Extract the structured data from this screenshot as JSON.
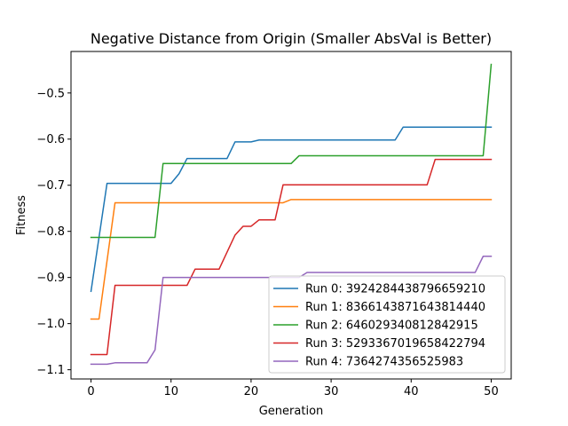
{
  "chart_data": {
    "type": "line",
    "title": "Negative Distance from Origin (Smaller AbsVal is Better)",
    "xlabel": "Generation",
    "ylabel": "Fitness",
    "xlim": [
      -2.5,
      52.5
    ],
    "ylim": [
      -1.12,
      -0.41
    ],
    "xticks": [
      0,
      10,
      20,
      30,
      40,
      50
    ],
    "yticks": [
      -1.1,
      -1.0,
      -0.9,
      -0.8,
      -0.7,
      -0.6,
      -0.5
    ],
    "ytick_labels": [
      "−1.1",
      "−1.0",
      "−0.9",
      "−0.8",
      "−0.7",
      "−0.6",
      "−0.5"
    ],
    "grid": false,
    "legend_position": "lower right",
    "series": [
      {
        "name": "Run 0: 3924284438796659210",
        "color": "#1f77b4",
        "points": [
          [
            0,
            -0.93
          ],
          [
            2,
            -0.696
          ],
          [
            10,
            -0.696
          ],
          [
            11,
            -0.675
          ],
          [
            12,
            -0.642
          ],
          [
            17,
            -0.642
          ],
          [
            18,
            -0.606
          ],
          [
            20,
            -0.606
          ],
          [
            21,
            -0.602
          ],
          [
            38,
            -0.602
          ],
          [
            39,
            -0.574
          ],
          [
            50,
            -0.574
          ]
        ]
      },
      {
        "name": "Run 1: 8366143871643814440",
        "color": "#ff7f0e",
        "points": [
          [
            0,
            -0.99
          ],
          [
            1,
            -0.99
          ],
          [
            3,
            -0.738
          ],
          [
            24,
            -0.738
          ],
          [
            25,
            -0.731
          ],
          [
            50,
            -0.731
          ]
        ]
      },
      {
        "name": "Run 2: 646029340812842915",
        "color": "#2ca02c",
        "points": [
          [
            0,
            -0.813
          ],
          [
            8,
            -0.813
          ],
          [
            9,
            -0.653
          ],
          [
            25,
            -0.653
          ],
          [
            26,
            -0.636
          ],
          [
            49,
            -0.636
          ],
          [
            50,
            -0.438
          ]
        ]
      },
      {
        "name": "Run 3: 5293367019658422794",
        "color": "#d62728",
        "points": [
          [
            0,
            -1.067
          ],
          [
            2,
            -1.067
          ],
          [
            3,
            -0.917
          ],
          [
            12,
            -0.917
          ],
          [
            13,
            -0.882
          ],
          [
            16,
            -0.882
          ],
          [
            17,
            -0.845
          ],
          [
            18,
            -0.808
          ],
          [
            19,
            -0.789
          ],
          [
            20,
            -0.789
          ],
          [
            21,
            -0.775
          ],
          [
            23,
            -0.775
          ],
          [
            24,
            -0.699
          ],
          [
            42,
            -0.699
          ],
          [
            43,
            -0.644
          ],
          [
            50,
            -0.644
          ]
        ]
      },
      {
        "name": "Run 4: 7364274356525983",
        "color": "#9467bd",
        "points": [
          [
            0,
            -1.088
          ],
          [
            2,
            -1.088
          ],
          [
            3,
            -1.085
          ],
          [
            7,
            -1.085
          ],
          [
            8,
            -1.057
          ],
          [
            9,
            -0.9
          ],
          [
            26,
            -0.9
          ],
          [
            27,
            -0.889
          ],
          [
            48,
            -0.889
          ],
          [
            49,
            -0.854
          ],
          [
            50,
            -0.854
          ]
        ]
      }
    ]
  }
}
